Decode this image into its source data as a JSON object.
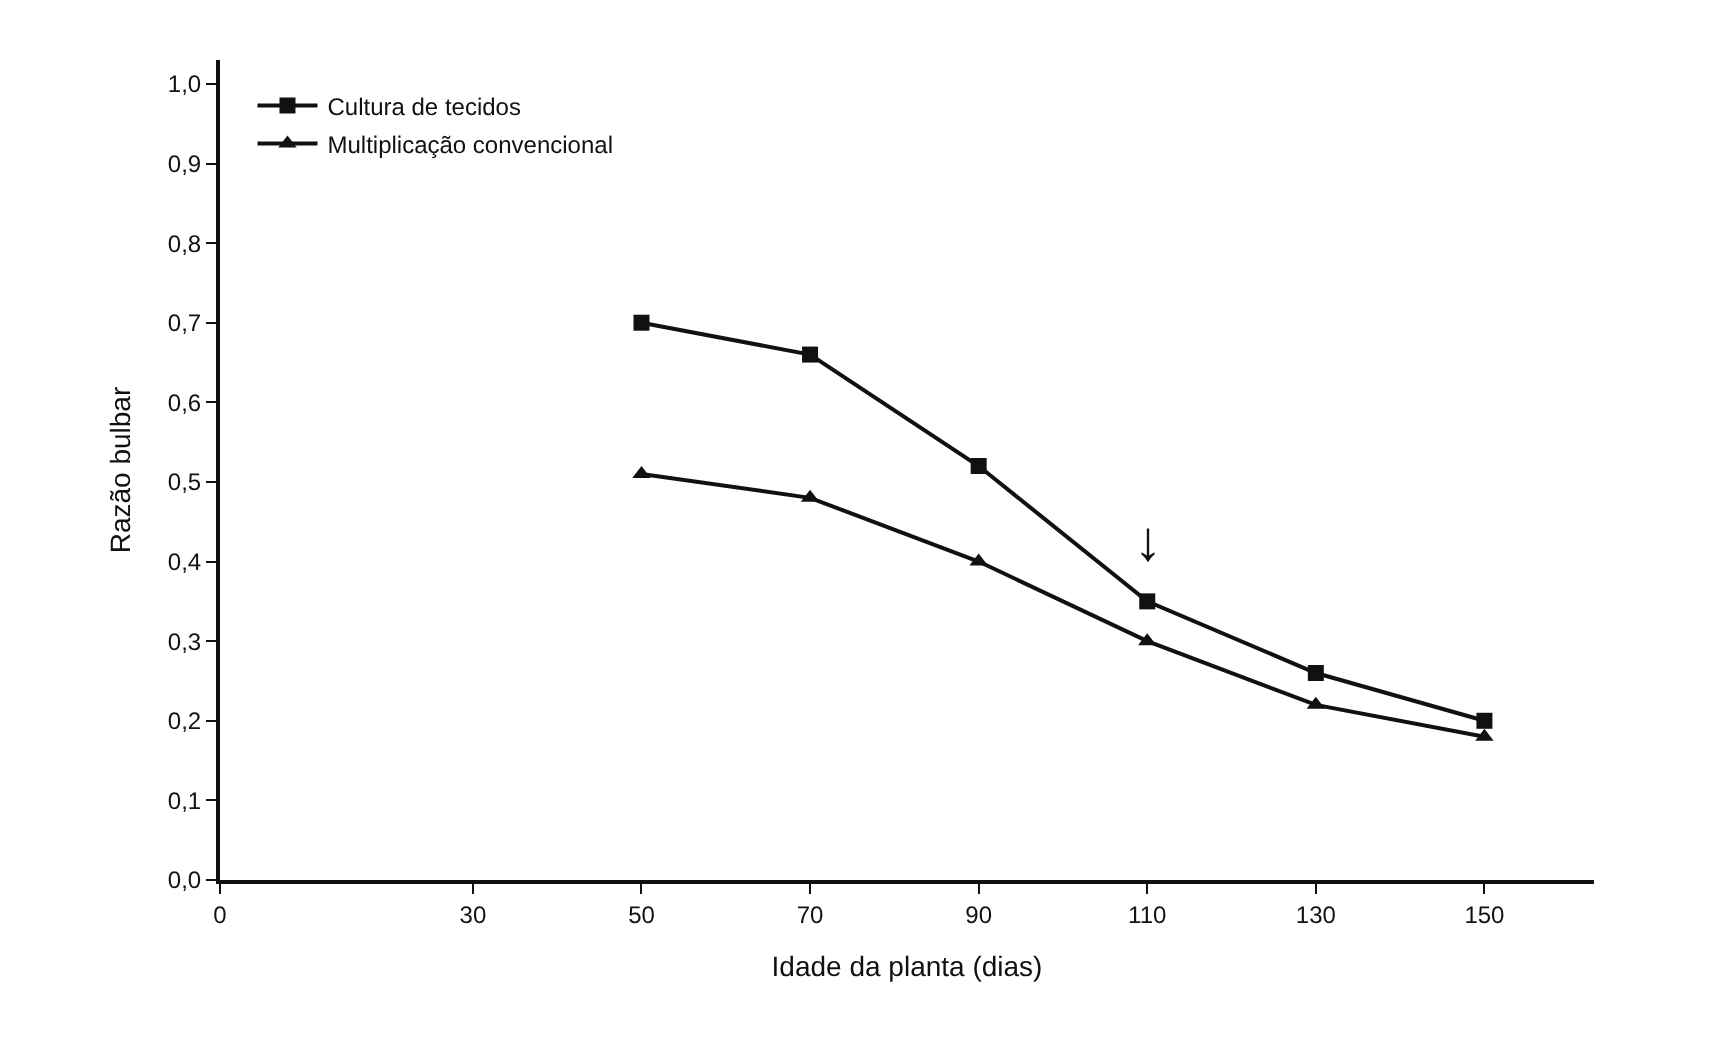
{
  "chart_data": {
    "type": "line",
    "xlabel": "Idade da planta (dias)",
    "ylabel": "Razão bulbar",
    "x": [
      50,
      70,
      90,
      110,
      130,
      150
    ],
    "series": [
      {
        "name": "Cultura de tecidos",
        "color": "#111111",
        "marker": "square",
        "values": [
          0.7,
          0.66,
          0.52,
          0.35,
          0.26,
          0.2
        ]
      },
      {
        "name": "Multiplicação convencional",
        "color": "#111111",
        "marker": "triangle",
        "values": [
          0.51,
          0.48,
          0.4,
          0.3,
          0.22,
          0.18
        ]
      }
    ],
    "annotations": [
      {
        "text": "↓",
        "x": 110,
        "y": 0.35
      }
    ],
    "xlim": [
      0,
      163
    ],
    "ylim": [
      0,
      1.03
    ],
    "xticks": [
      0,
      30,
      50,
      70,
      90,
      110,
      130,
      150
    ],
    "yticks": [
      {
        "value": 0,
        "label": "0,0"
      },
      {
        "value": 0.1,
        "label": "0,1"
      },
      {
        "value": 0.2,
        "label": "0,2"
      },
      {
        "value": 0.3,
        "label": "0,3"
      },
      {
        "value": 0.4,
        "label": "0,4"
      },
      {
        "value": 0.5,
        "label": "0,5"
      },
      {
        "value": 0.6,
        "label": "0,6"
      },
      {
        "value": 0.7,
        "label": "0,7"
      },
      {
        "value": 0.8,
        "label": "0,8"
      },
      {
        "value": 0.9,
        "label": "0,9"
      },
      {
        "value": 1.0,
        "label": "1,0"
      }
    ],
    "legend": "top left",
    "line_style": "solid"
  }
}
